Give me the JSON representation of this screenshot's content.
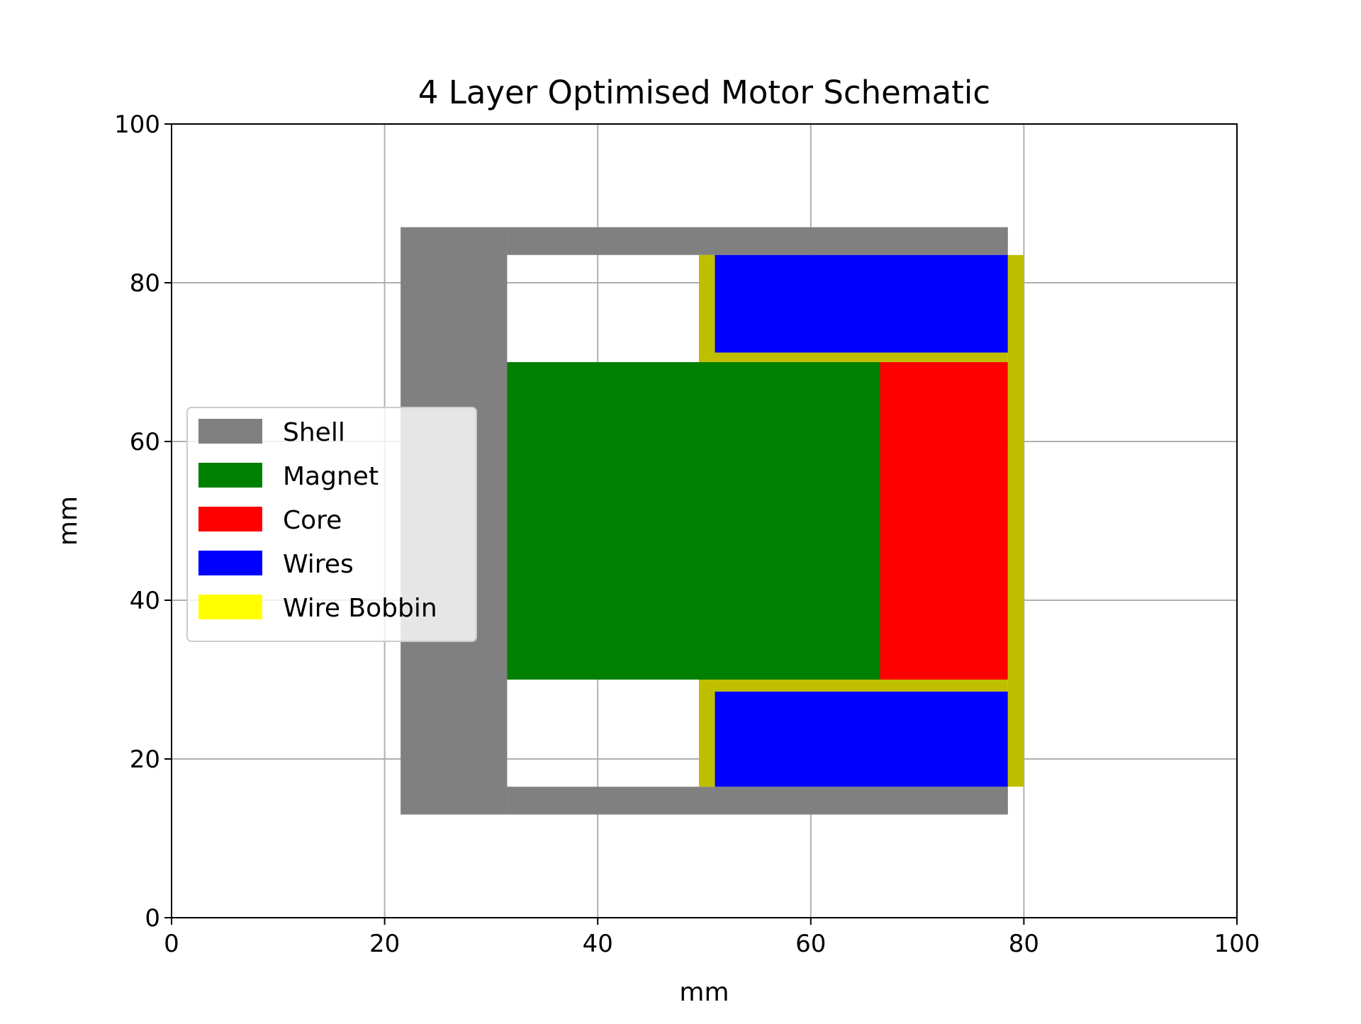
{
  "chart_data": {
    "type": "schematic",
    "title": "4 Layer Optimised Motor Schematic",
    "xlabel": "mm",
    "ylabel": "mm",
    "xlim": [
      0,
      100
    ],
    "ylim": [
      0,
      100
    ],
    "xticks": [
      0,
      20,
      40,
      60,
      80,
      100
    ],
    "yticks": [
      0,
      20,
      40,
      60,
      80,
      100
    ],
    "grid": true,
    "legend_position": "center-left",
    "series": [
      {
        "name": "Shell",
        "color": "#808080",
        "rects": [
          {
            "x0": 21.5,
            "x1": 31.5,
            "y0": 13,
            "y1": 87
          },
          {
            "x0": 31.5,
            "x1": 78.5,
            "y0": 83.5,
            "y1": 87
          },
          {
            "x0": 31.5,
            "x1": 78.5,
            "y0": 13,
            "y1": 16.5
          }
        ]
      },
      {
        "name": "Magnet",
        "color": "#008000",
        "rects": [
          {
            "x0": 31.5,
            "x1": 66.5,
            "y0": 30,
            "y1": 70
          }
        ]
      },
      {
        "name": "Core",
        "color": "#ff0000",
        "rects": [
          {
            "x0": 66.5,
            "x1": 78.5,
            "y0": 30,
            "y1": 70
          }
        ]
      },
      {
        "name": "Wires",
        "color": "#0000ff",
        "rects": [
          {
            "x0": 51,
            "x1": 78.5,
            "y0": 71.2,
            "y1": 83.5
          },
          {
            "x0": 51,
            "x1": 78.5,
            "y0": 16.5,
            "y1": 28.5
          }
        ]
      },
      {
        "name": "Wire Bobbin",
        "color": "#ffff00",
        "draw_color": "#bfbf00",
        "rects": [
          {
            "x0": 49.5,
            "x1": 51,
            "y0": 71.2,
            "y1": 83.5
          },
          {
            "x0": 49.5,
            "x1": 78.5,
            "y0": 70,
            "y1": 71.2
          },
          {
            "x0": 78.5,
            "x1": 80,
            "y0": 16.5,
            "y1": 83.5
          },
          {
            "x0": 49.5,
            "x1": 51,
            "y0": 16.5,
            "y1": 30
          },
          {
            "x0": 51,
            "x1": 78.5,
            "y0": 28.5,
            "y1": 30
          }
        ]
      }
    ]
  }
}
